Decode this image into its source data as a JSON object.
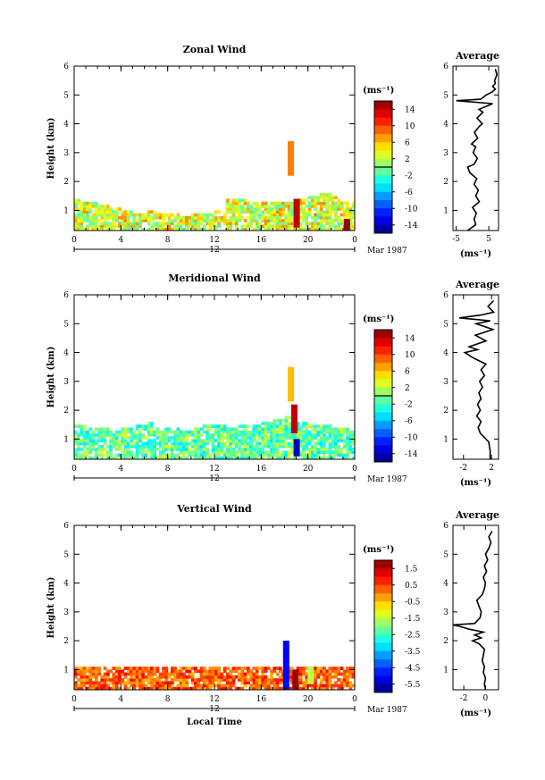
{
  "figure": {
    "y_label": "Height (km)",
    "x_label": "Local Time",
    "date_label": "Mar 1987",
    "date_tick": "12",
    "units_label": "(ms⁻¹)",
    "average_title": "Average"
  },
  "chart_data": [
    {
      "id": "zonal",
      "type": "heatmap",
      "title": "Zonal Wind",
      "xlabel": "",
      "ylabel": "Height (km)",
      "xlim": [
        0,
        24
      ],
      "ylim": [
        0.3,
        6
      ],
      "x_ticks": [
        "0",
        "4",
        "8",
        "12",
        "16",
        "20",
        "0"
      ],
      "y_ticks": [
        "1",
        "2",
        "3",
        "4",
        "5",
        "6"
      ],
      "colorbar": {
        "range": [
          -16,
          16
        ],
        "ticks": [
          "14",
          "10",
          "6",
          "2",
          "-2",
          "-6",
          "-10",
          "-14"
        ],
        "zero_line": 0
      },
      "echo_top_km": [
        1.4,
        1.3,
        1.2,
        1.1,
        1.0,
        0.9,
        1.0,
        0.9,
        0.9,
        0.8,
        0.9,
        0.9,
        1.0,
        1.4,
        1.4,
        1.3,
        1.3,
        1.3,
        1.3,
        1.4,
        1.5,
        1.6,
        1.5,
        1.3
      ],
      "features": [
        {
          "hour": 18.5,
          "from_km": 2.2,
          "to_km": 3.4,
          "value": 8
        },
        {
          "hour": 19.0,
          "from_km": 0.4,
          "to_km": 1.4,
          "value": 14
        },
        {
          "hour": 23.3,
          "from_km": 0.3,
          "to_km": 0.7,
          "value": 15
        }
      ],
      "average": {
        "title": "Average",
        "xlabel": "(ms⁻¹)",
        "xlim": [
          -6,
          8
        ],
        "x_ticks": [
          "-5",
          "5"
        ],
        "y_ticks": [
          "1",
          "2",
          "3",
          "4",
          "5",
          "6"
        ],
        "profile": [
          [
            0.3,
            -1.5
          ],
          [
            0.5,
            1.0
          ],
          [
            0.7,
            0.5
          ],
          [
            0.9,
            1.2
          ],
          [
            1.1,
            0.0
          ],
          [
            1.3,
            2.1
          ],
          [
            1.5,
            1.0
          ],
          [
            1.7,
            1.8
          ],
          [
            1.9,
            0.5
          ],
          [
            2.1,
            1.3
          ],
          [
            2.3,
            -0.8
          ],
          [
            2.5,
            -1.5
          ],
          [
            2.6,
            0.5
          ],
          [
            2.8,
            1.5
          ],
          [
            3.0,
            0.2
          ],
          [
            3.2,
            1.0
          ],
          [
            3.3,
            -0.3
          ],
          [
            3.5,
            1.6
          ],
          [
            3.7,
            0.6
          ],
          [
            3.9,
            2.0
          ],
          [
            4.0,
            3.0
          ],
          [
            4.2,
            1.4
          ],
          [
            4.4,
            3.2
          ],
          [
            4.5,
            2.0
          ],
          [
            4.7,
            6.2
          ],
          [
            4.8,
            -5.0
          ],
          [
            4.85,
            2.5
          ],
          [
            5.0,
            4.2
          ],
          [
            5.1,
            6.0
          ],
          [
            5.2,
            7.0
          ],
          [
            5.3,
            6.2
          ],
          [
            5.4,
            7.0
          ],
          [
            5.5,
            6.8
          ],
          [
            5.7,
            7.5
          ],
          [
            5.9,
            7.0
          ]
        ]
      }
    },
    {
      "id": "meridional",
      "type": "heatmap",
      "title": "Meridional Wind",
      "xlabel": "",
      "ylabel": "Height (km)",
      "xlim": [
        0,
        24
      ],
      "ylim": [
        0.3,
        6
      ],
      "x_ticks": [
        "0",
        "4",
        "8",
        "12",
        "16",
        "20",
        "0"
      ],
      "y_ticks": [
        "1",
        "2",
        "3",
        "4",
        "5",
        "6"
      ],
      "colorbar": {
        "range": [
          -16,
          16
        ],
        "ticks": [
          "14",
          "10",
          "6",
          "2",
          "-2",
          "-6",
          "-10",
          "-14"
        ],
        "zero_line": 0
      },
      "echo_top_km": [
        1.5,
        1.4,
        1.4,
        1.3,
        1.4,
        1.5,
        1.6,
        1.4,
        1.4,
        1.3,
        1.4,
        1.5,
        1.5,
        1.4,
        1.5,
        1.5,
        1.6,
        1.7,
        1.8,
        1.6,
        1.5,
        1.5,
        1.4,
        1.4
      ],
      "features": [
        {
          "hour": 18.5,
          "from_km": 2.3,
          "to_km": 3.5,
          "value": 6
        },
        {
          "hour": 18.8,
          "from_km": 1.2,
          "to_km": 2.2,
          "value": 14
        },
        {
          "hour": 19.0,
          "from_km": 0.4,
          "to_km": 1.0,
          "value": -14
        }
      ],
      "average": {
        "title": "Average",
        "xlabel": "(ms⁻¹)",
        "xlim": [
          -3.5,
          3.0
        ],
        "x_ticks": [
          "-2",
          "2"
        ],
        "y_ticks": [
          "1",
          "2",
          "3",
          "4",
          "5",
          "6"
        ],
        "profile": [
          [
            0.3,
            1.8
          ],
          [
            0.6,
            1.8
          ],
          [
            0.9,
            1.6
          ],
          [
            1.0,
            1.2
          ],
          [
            1.2,
            0.4
          ],
          [
            1.4,
            0.1
          ],
          [
            1.6,
            0.5
          ],
          [
            1.8,
            -0.1
          ],
          [
            2.0,
            0.4
          ],
          [
            2.2,
            0.0
          ],
          [
            2.4,
            0.5
          ],
          [
            2.6,
            0.2
          ],
          [
            2.8,
            0.7
          ],
          [
            3.0,
            0.3
          ],
          [
            3.2,
            1.0
          ],
          [
            3.4,
            0.5
          ],
          [
            3.6,
            1.2
          ],
          [
            3.8,
            -0.5
          ],
          [
            4.0,
            -1.8
          ],
          [
            4.1,
            0.0
          ],
          [
            4.2,
            -1.2
          ],
          [
            4.4,
            1.2
          ],
          [
            4.6,
            -0.3
          ],
          [
            4.8,
            2.2
          ],
          [
            5.0,
            -0.2
          ],
          [
            5.1,
            1.8
          ],
          [
            5.2,
            -2.6
          ],
          [
            5.3,
            0.5
          ],
          [
            5.4,
            2.3
          ],
          [
            5.6,
            1.5
          ],
          [
            5.8,
            2.3
          ]
        ]
      }
    },
    {
      "id": "vertical",
      "type": "heatmap",
      "title": "Vertical Wind",
      "xlabel": "Local Time",
      "ylabel": "Height (km)",
      "xlim": [
        0,
        24
      ],
      "ylim": [
        0.3,
        6
      ],
      "x_ticks": [
        "0",
        "4",
        "8",
        "12",
        "16",
        "20",
        "0"
      ],
      "y_ticks": [
        "1",
        "2",
        "3",
        "4",
        "5",
        "6"
      ],
      "colorbar": {
        "range": [
          -6.0,
          2.0
        ],
        "ticks": [
          "1.5",
          "0.5",
          "-0.5",
          "-1.5",
          "-2.5",
          "-3.5",
          "-4.5",
          "-5.5"
        ],
        "zero_line": null
      },
      "echo_top_km": [
        1.1,
        1.1,
        1.1,
        1.1,
        1.1,
        1.1,
        1.1,
        1.1,
        1.1,
        1.1,
        1.1,
        1.1,
        1.1,
        1.1,
        1.1,
        1.1,
        1.1,
        1.1,
        1.1,
        1.1,
        1.1,
        1.1,
        1.1,
        1.1
      ],
      "features": [
        {
          "hour": 18.1,
          "from_km": 0.3,
          "to_km": 2.0,
          "value": -5.0
        },
        {
          "hour": 18.9,
          "from_km": 0.3,
          "to_km": 1.0,
          "value": 1.8
        },
        {
          "hour": 20.2,
          "from_km": 0.5,
          "to_km": 1.1,
          "value": -1.5
        }
      ],
      "average": {
        "title": "Average",
        "xlabel": "(ms⁻¹)",
        "xlim": [
          -3.0,
          1.2
        ],
        "x_ticks": [
          "-2",
          "0"
        ],
        "y_ticks": [
          "1",
          "2",
          "3",
          "4",
          "5",
          "6"
        ],
        "profile": [
          [
            0.3,
            0.0
          ],
          [
            0.5,
            -0.1
          ],
          [
            0.7,
            0.0
          ],
          [
            0.9,
            -0.2
          ],
          [
            1.1,
            -0.1
          ],
          [
            1.3,
            -0.3
          ],
          [
            1.5,
            -0.2
          ],
          [
            1.7,
            -0.1
          ],
          [
            1.9,
            -0.6
          ],
          [
            2.0,
            -1.2
          ],
          [
            2.1,
            -0.4
          ],
          [
            2.2,
            -1.0
          ],
          [
            2.3,
            -0.2
          ],
          [
            2.4,
            -1.5
          ],
          [
            2.5,
            -2.4
          ],
          [
            2.55,
            -3.0
          ],
          [
            2.6,
            -1.0
          ],
          [
            2.8,
            -0.5
          ],
          [
            3.0,
            -0.4
          ],
          [
            3.2,
            -0.6
          ],
          [
            3.4,
            -0.8
          ],
          [
            3.6,
            -0.3
          ],
          [
            3.8,
            -0.1
          ],
          [
            4.0,
            0.0
          ],
          [
            4.2,
            -0.2
          ],
          [
            4.4,
            0.1
          ],
          [
            4.6,
            -0.1
          ],
          [
            4.8,
            0.2
          ],
          [
            5.0,
            0.0
          ],
          [
            5.2,
            0.3
          ],
          [
            5.4,
            0.5
          ],
          [
            5.6,
            0.3
          ],
          [
            5.8,
            0.6
          ]
        ]
      }
    }
  ]
}
